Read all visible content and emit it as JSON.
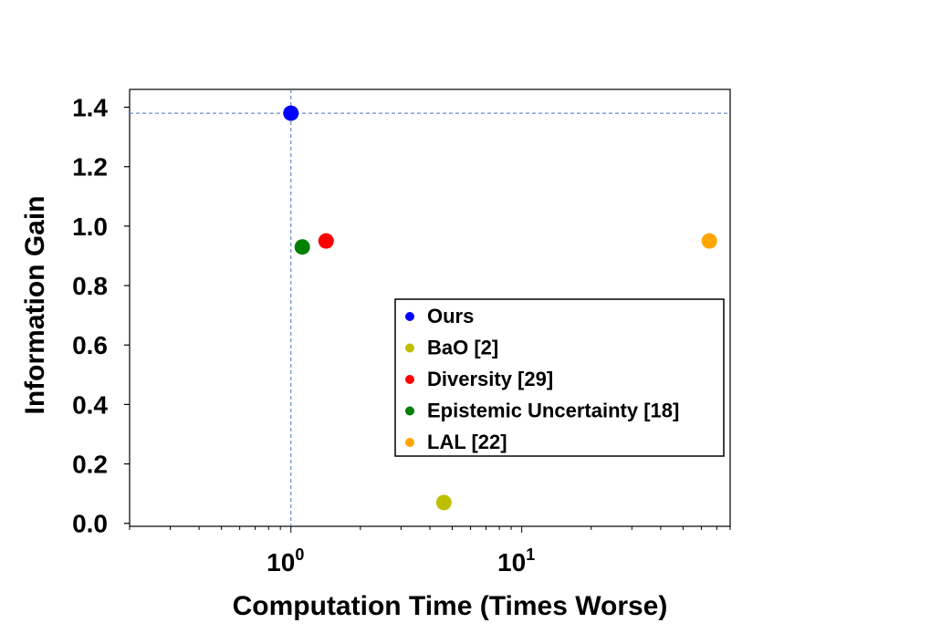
{
  "chart_data": {
    "type": "scatter",
    "xlabel": "Computation Time (Times Worse)",
    "ylabel": "Information Gain",
    "xscale": "log",
    "xlim": [
      0.2,
      80
    ],
    "ylim": [
      -0.01,
      1.46
    ],
    "x_ticks": [
      {
        "value": 1,
        "base": "10",
        "exp": "0"
      },
      {
        "value": 10,
        "base": "10",
        "exp": "1"
      }
    ],
    "y_ticks": [
      "0.0",
      "0.2",
      "0.4",
      "0.6",
      "0.8",
      "1.0",
      "1.2",
      "1.4"
    ],
    "reference_lines": {
      "x": 1.0,
      "y": 1.38,
      "color": "#4472c4",
      "style": "dashed"
    },
    "grid": false,
    "legend_position": "center-right",
    "series": [
      {
        "name": "Ours",
        "color": "#0000ff",
        "points": [
          {
            "x": 1.0,
            "y": 1.38
          }
        ]
      },
      {
        "name": "BaO [2]",
        "color": "#bfbf00",
        "points": [
          {
            "x": 4.6,
            "y": 0.07
          }
        ]
      },
      {
        "name": "Diversity [29]",
        "color": "#ff0000",
        "points": [
          {
            "x": 1.42,
            "y": 0.95
          }
        ]
      },
      {
        "name": "Epistemic Uncertainty [18]",
        "color": "#008000",
        "points": [
          {
            "x": 1.12,
            "y": 0.93
          }
        ]
      },
      {
        "name": "LAL [22]",
        "color": "#ffa500",
        "points": [
          {
            "x": 65,
            "y": 0.95
          }
        ]
      }
    ]
  }
}
